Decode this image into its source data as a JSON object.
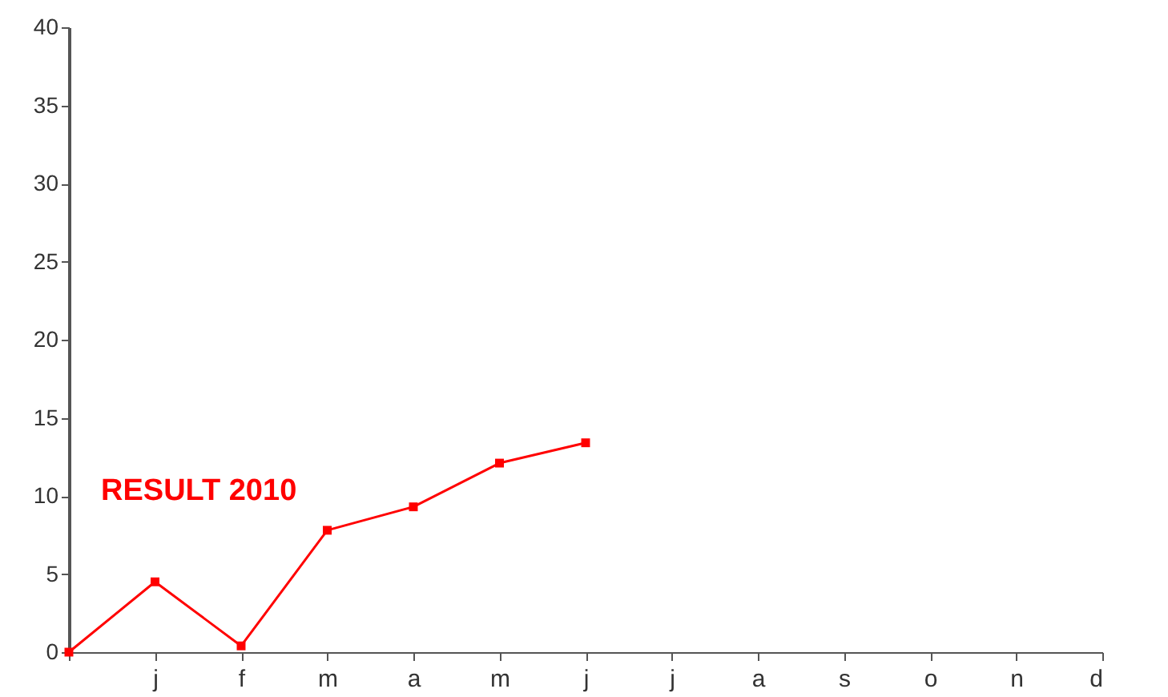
{
  "chart_data": {
    "type": "line",
    "categories": [
      null,
      "j",
      "f",
      "m",
      "a",
      "m",
      "j",
      "j",
      "a",
      "s",
      "o",
      "n",
      "d"
    ],
    "series": [
      {
        "color": "#ff0000",
        "values": [
          0,
          4.5,
          0.4,
          7.8,
          9.3,
          12.1,
          13.4,
          null,
          null,
          null,
          null,
          null,
          null
        ]
      }
    ],
    "ylim": [
      0,
      40
    ],
    "yticks": [
      0,
      5,
      10,
      15,
      20,
      25,
      30,
      35,
      40
    ],
    "grid": false,
    "marker": "square",
    "line_style": "solid",
    "annotations": [
      "RESULT 2010"
    ]
  }
}
